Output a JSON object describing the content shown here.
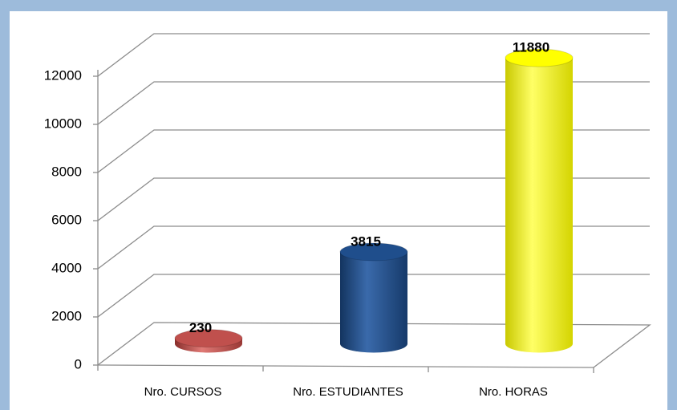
{
  "chart_data": {
    "type": "cylinder_bar",
    "categories": [
      "Nro. CURSOS",
      "Nro. ESTUDIANTES",
      "Nro. HORAS"
    ],
    "values": [
      230,
      3815,
      11880
    ],
    "colors": [
      "#c0504d",
      "#1f4e8c",
      "#ffff00"
    ],
    "ylim": [
      0,
      12000
    ],
    "yticks": [
      0,
      2000,
      4000,
      6000,
      8000,
      10000,
      12000
    ],
    "grid": true
  }
}
